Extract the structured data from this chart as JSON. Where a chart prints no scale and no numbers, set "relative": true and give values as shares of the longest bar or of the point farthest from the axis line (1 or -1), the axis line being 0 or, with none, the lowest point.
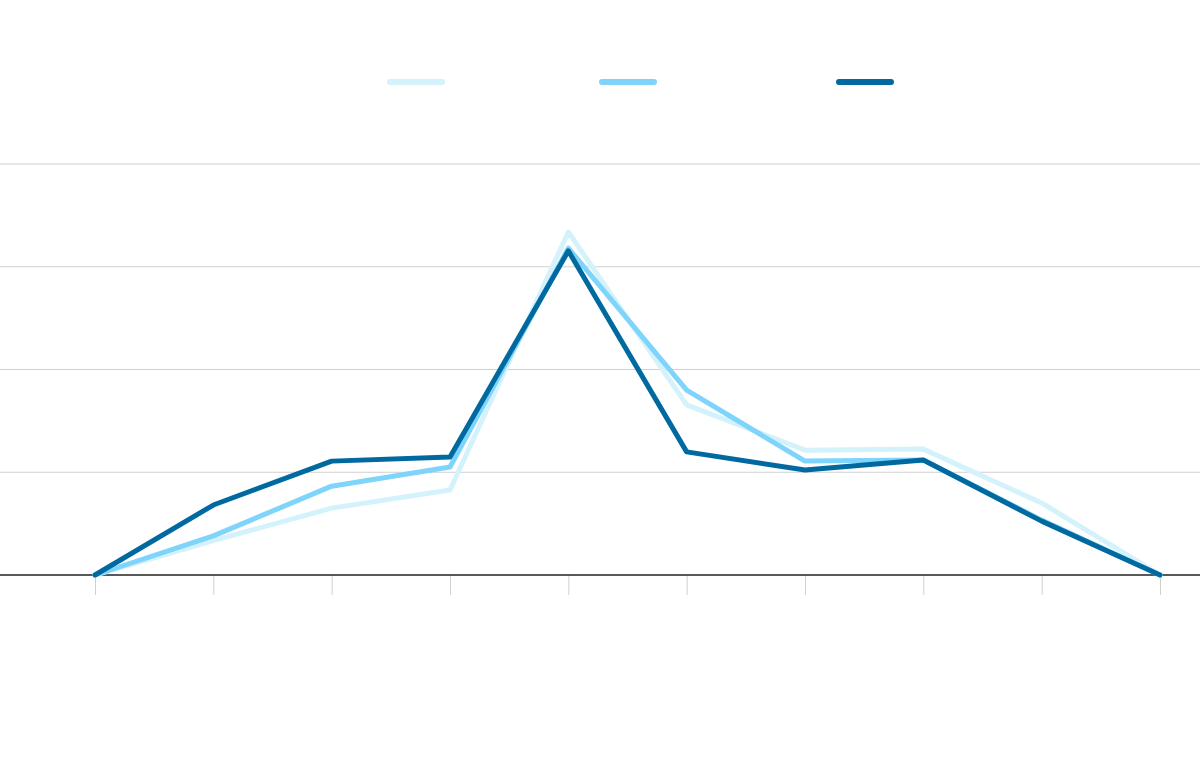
{
  "chart_data": {
    "type": "line",
    "relative": true,
    "grid": "y",
    "categories": [
      null,
      null,
      null,
      null,
      null,
      null,
      null,
      null,
      null,
      null
    ],
    "series": [
      {
        "color": "#d4f2fc",
        "values": [
          0,
          0.1,
          0.195,
          0.248,
          1,
          0.496,
          0.364,
          0.367,
          0.21,
          0
        ]
      },
      {
        "color": "#7fd4fb",
        "values": [
          0,
          0.114,
          0.259,
          0.315,
          0.953,
          0.539,
          0.332,
          0.335,
          0.16,
          0
        ]
      },
      {
        "color": "#0069a0",
        "values": [
          0,
          0.204,
          0.332,
          0.344,
          0.945,
          0.359,
          0.306,
          0.335,
          0.157,
          0
        ]
      }
    ]
  }
}
